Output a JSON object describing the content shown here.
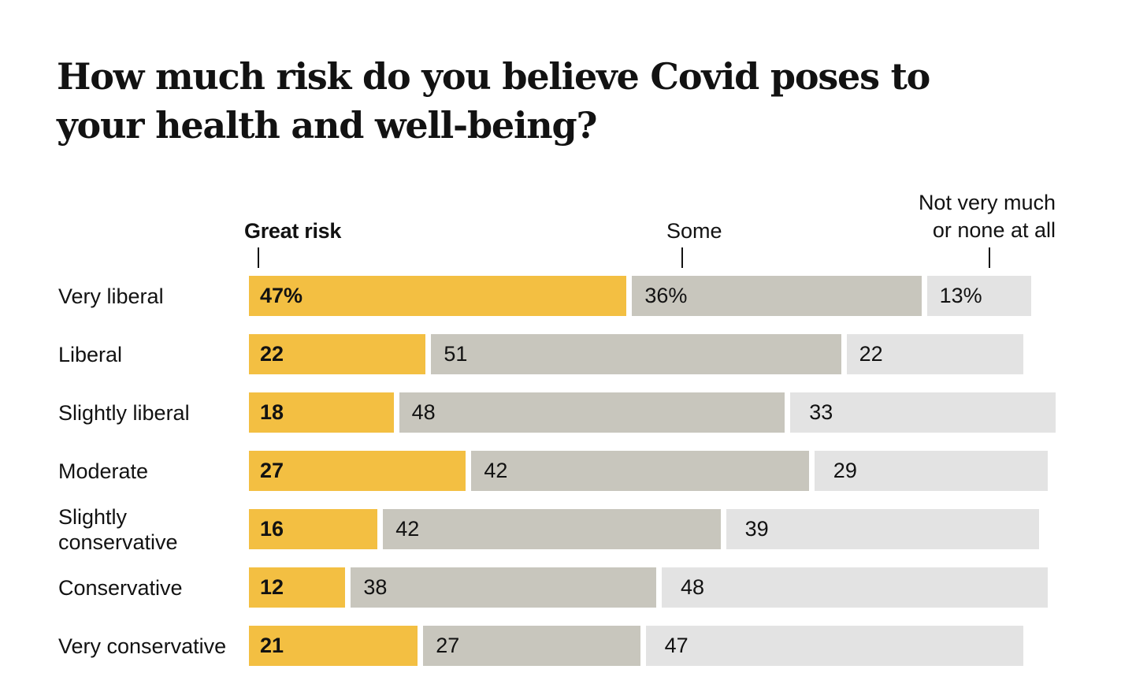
{
  "title": "How much risk do you believe Covid poses to your health and well-being?",
  "headers": {
    "great": "Great risk",
    "some": "Some",
    "none_line1": "Not very much",
    "none_line2": "or none at all"
  },
  "colors": {
    "great": "#f3bf42",
    "some": "#c8c6bd",
    "none": "#e3e3e3"
  },
  "chart_data": {
    "type": "bar",
    "orientation": "horizontal",
    "stacked": true,
    "title": "How much risk do you believe Covid poses to your health and well-being?",
    "categories": [
      "Very liberal",
      "Liberal",
      "Slightly liberal",
      "Moderate",
      "Slightly conservative",
      "Conservative",
      "Very conservative"
    ],
    "category_lines": [
      [
        "Very liberal"
      ],
      [
        "Liberal"
      ],
      [
        "Slightly liberal"
      ],
      [
        "Moderate"
      ],
      [
        "Slightly",
        "conservative"
      ],
      [
        "Conservative"
      ],
      [
        "Very conservative"
      ]
    ],
    "series": [
      {
        "name": "Great risk",
        "values": [
          47,
          22,
          18,
          27,
          16,
          12,
          21
        ],
        "labels": [
          "47%",
          "22",
          "18",
          "27",
          "16",
          "12",
          "21"
        ]
      },
      {
        "name": "Some",
        "values": [
          36,
          51,
          48,
          42,
          42,
          38,
          27
        ],
        "labels": [
          "36%",
          "51",
          "48",
          "42",
          "42",
          "38",
          "27"
        ]
      },
      {
        "name": "Not very much or none at all",
        "values": [
          13,
          22,
          33,
          29,
          39,
          48,
          47
        ],
        "labels": [
          "13%",
          "22",
          "33",
          "29",
          "39",
          "48",
          "47"
        ]
      }
    ],
    "unit": "%"
  }
}
